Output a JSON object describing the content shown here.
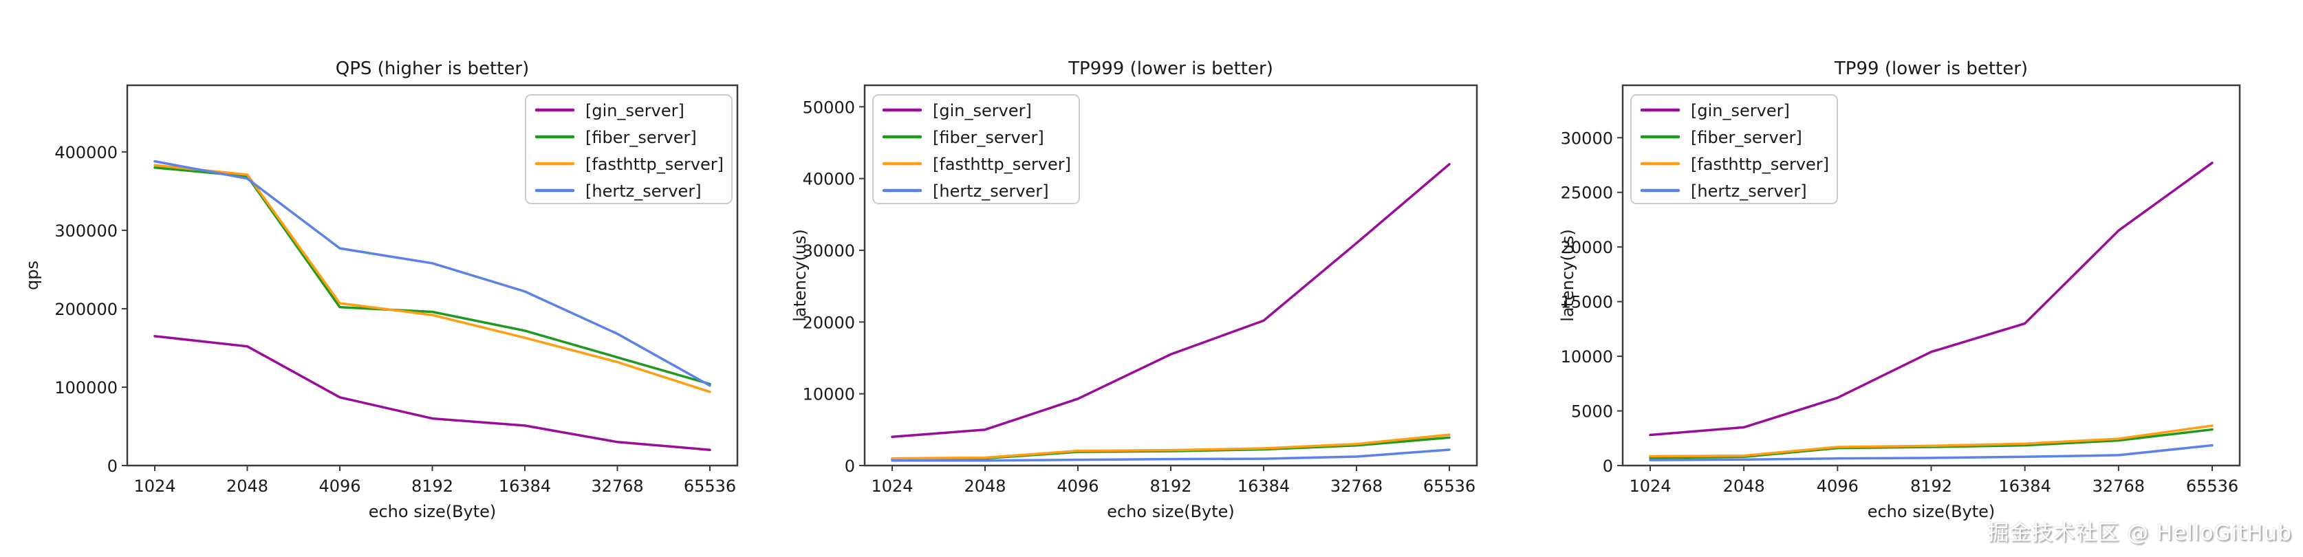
{
  "page": {
    "background": "#ffffff",
    "watermark": "掘金技术社区 @ HelloGitHub"
  },
  "style": {
    "axis_color": "#3c3c3c",
    "text_color": "#1a1a1a",
    "legend_border_color": "#cccccc",
    "legend_background": "#ffffff",
    "series_colors": {
      "gin_server": "#9a0d9a",
      "fiber_server": "#1e9a1e",
      "fasthttp_server": "#ff9d13",
      "hertz_server": "#5b82e8"
    }
  },
  "chart_data": [
    {
      "type": "line",
      "title": "QPS (higher is better)",
      "xlabel": "echo size(Byte)",
      "ylabel": "qps",
      "categories": [
        "1024",
        "2048",
        "4096",
        "8192",
        "16384",
        "32768",
        "65536"
      ],
      "ylim": [
        0,
        485000
      ],
      "yticks": [
        0,
        100000,
        200000,
        300000,
        400000
      ],
      "grid": false,
      "legend_position": "top-right",
      "series": [
        {
          "name": "[gin_server]",
          "color": "#9a0d9a",
          "values": [
            165000,
            152000,
            87000,
            60000,
            51000,
            30000,
            20000
          ]
        },
        {
          "name": "[fiber_server]",
          "color": "#1e9a1e",
          "values": [
            380000,
            369000,
            202000,
            196000,
            172000,
            138000,
            104000
          ]
        },
        {
          "name": "[fasthttp_server]",
          "color": "#ff9d13",
          "values": [
            383000,
            371000,
            207000,
            192000,
            163000,
            132000,
            94000
          ]
        },
        {
          "name": "[hertz_server]",
          "color": "#5b82e8",
          "values": [
            388000,
            366000,
            277000,
            258000,
            222000,
            168000,
            102000
          ]
        }
      ]
    },
    {
      "type": "line",
      "title": "TP999 (lower is better)",
      "xlabel": "echo size(Byte)",
      "ylabel": "latency(us)",
      "categories": [
        "1024",
        "2048",
        "4096",
        "8192",
        "16384",
        "32768",
        "65536"
      ],
      "ylim": [
        0,
        53000
      ],
      "yticks": [
        0,
        10000,
        20000,
        30000,
        40000,
        50000
      ],
      "grid": false,
      "legend_position": "top-left",
      "series": [
        {
          "name": "[gin_server]",
          "color": "#9a0d9a",
          "values": [
            4000,
            5000,
            9300,
            15500,
            20200,
            31000,
            42000
          ]
        },
        {
          "name": "[fiber_server]",
          "color": "#1e9a1e",
          "values": [
            900,
            1000,
            1900,
            2000,
            2250,
            2800,
            3900
          ]
        },
        {
          "name": "[fasthttp_server]",
          "color": "#ff9d13",
          "values": [
            1000,
            1100,
            2050,
            2150,
            2400,
            3000,
            4300
          ]
        },
        {
          "name": "[hertz_server]",
          "color": "#5b82e8",
          "values": [
            700,
            700,
            800,
            900,
            950,
            1250,
            2200
          ]
        }
      ]
    },
    {
      "type": "line",
      "title": "TP99 (lower is better)",
      "xlabel": "echo size(Byte)",
      "ylabel": "latency(us)",
      "categories": [
        "1024",
        "2048",
        "4096",
        "8192",
        "16384",
        "32768",
        "65536"
      ],
      "ylim": [
        0,
        34800
      ],
      "yticks": [
        0,
        5000,
        10000,
        15000,
        20000,
        25000,
        30000
      ],
      "grid": false,
      "legend_position": "top-left",
      "series": [
        {
          "name": "[gin_server]",
          "color": "#9a0d9a",
          "values": [
            2800,
            3500,
            6200,
            10400,
            13000,
            21500,
            27700
          ]
        },
        {
          "name": "[fiber_server]",
          "color": "#1e9a1e",
          "values": [
            700,
            800,
            1600,
            1700,
            1850,
            2300,
            3300
          ]
        },
        {
          "name": "[fasthttp_server]",
          "color": "#ff9d13",
          "values": [
            850,
            900,
            1700,
            1800,
            2000,
            2450,
            3650
          ]
        },
        {
          "name": "[hertz_server]",
          "color": "#5b82e8",
          "values": [
            500,
            550,
            650,
            700,
            800,
            950,
            1850
          ]
        }
      ]
    }
  ]
}
